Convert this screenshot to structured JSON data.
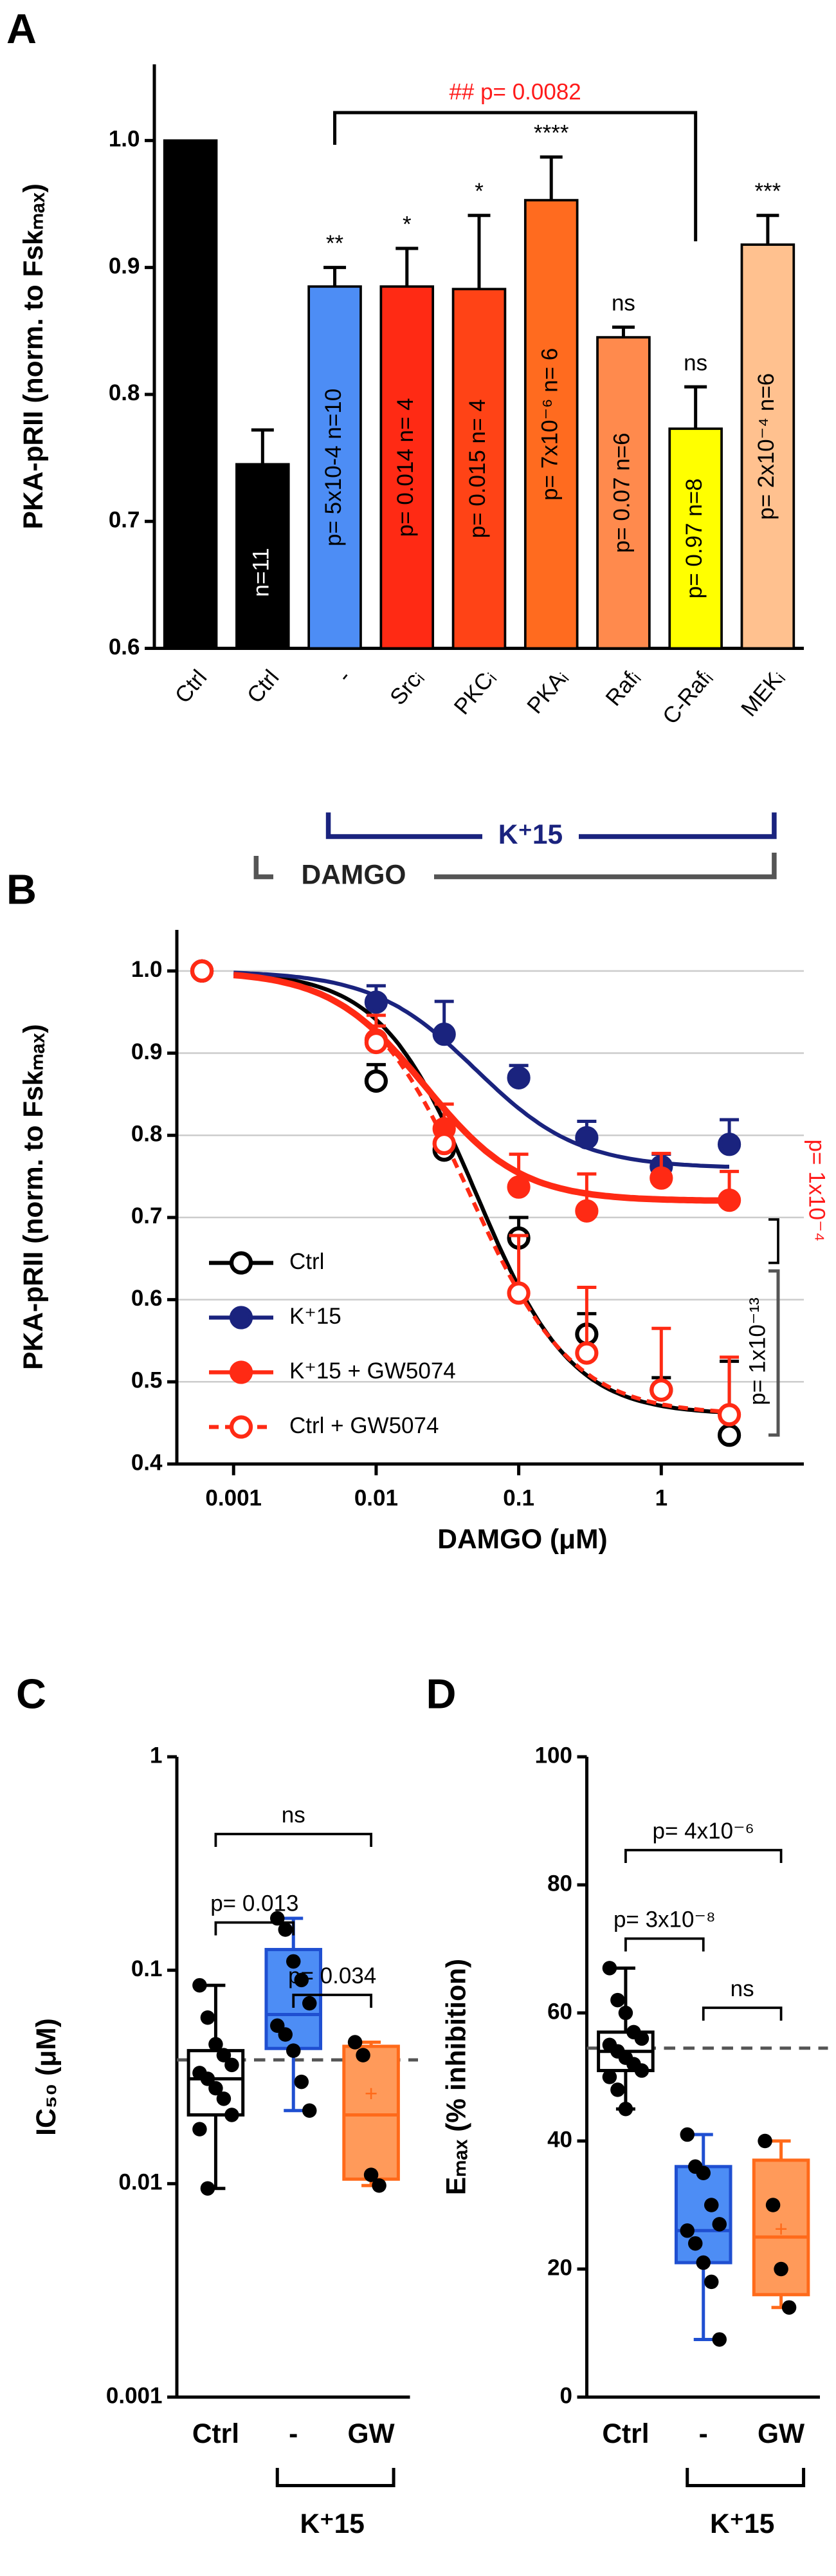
{
  "chart_data": [
    {
      "panel": "A",
      "type": "bar",
      "ylabel": "PKA-pRII (norm. to Fskₘₐₓ)",
      "categories": [
        "Ctrl",
        "Ctrl",
        "-",
        "Srcᵢ",
        "PKCᵢ",
        "PKAᵢ",
        "Rafᵢ",
        "C-Rafᵢ",
        "MEKᵢ"
      ],
      "values": [
        1.0,
        0.745,
        0.885,
        0.885,
        0.883,
        0.953,
        0.845,
        0.773,
        0.918
      ],
      "errors": [
        null,
        0.027,
        0.015,
        0.03,
        0.058,
        0.034,
        0.008,
        0.033,
        0.023
      ],
      "colors": [
        "#000000",
        "#000000",
        "#4d8df5",
        "#ff2a14",
        "#ff4316",
        "#ff6b1f",
        "#ff8a4d",
        "#ffff00",
        "#ffc18f"
      ],
      "significance": [
        null,
        null,
        "**",
        "*",
        "*",
        "****",
        "ns",
        "ns",
        "***"
      ],
      "bar_labels": [
        null,
        "n=11",
        "p= 5x10-4  n=10",
        "p= 0.014  n= 4",
        "p= 0.015  n= 4",
        "p= 7x10⁻⁶  n= 6",
        "p= 0.07  n=6",
        "p= 0.97  n=8",
        "p= 2x10⁻⁴  n=6"
      ],
      "ylim": [
        0.6,
        1.06
      ],
      "yticks": [
        0.6,
        0.7,
        0.8,
        0.9,
        {
          "value": 1,
          "label": "1.0"
        }
      ],
      "bracket_label": "## p= 0.0082",
      "groups": [
        "K⁺15",
        "DAMGO"
      ]
    },
    {
      "panel": "B",
      "type": "line",
      "xlabel": "DAMGO (μM)",
      "ylabel": "PKA-pRII (norm. to Fskₘₐₓ)",
      "x": [
        0.0006,
        0.01,
        0.03,
        0.1,
        0.3,
        1,
        3
      ],
      "xlog": true,
      "xlim": [
        0.0004,
        10
      ],
      "xticks": [
        0.001,
        0.01,
        0.1,
        1
      ],
      "ylim": [
        0.4,
        1.05
      ],
      "yticks": [
        0.4,
        0.5,
        0.6,
        0.7,
        0.8,
        0.9,
        {
          "value": 1,
          "label": "1.0"
        }
      ],
      "grid": true,
      "legend": "lower left",
      "series": [
        {
          "name": "Ctrl",
          "color": "#000000",
          "marker": "open",
          "dashed": false,
          "values": [
            1.0,
            0.866,
            0.782,
            0.675,
            0.558,
            0.49,
            0.435
          ],
          "errors": [
            null,
            0.02,
            0.02,
            0.025,
            0.025,
            0.015,
            0.09
          ],
          "fit": {
            "top": 1.0,
            "bottom": 0.46,
            "ic50": 0.05,
            "hill": 1.3
          }
        },
        {
          "name": "K⁺15",
          "color": "#1a237e",
          "marker": "filled",
          "dashed": false,
          "values": [
            1.0,
            0.962,
            0.923,
            0.87,
            0.797,
            0.762,
            0.789
          ],
          "errors": [
            null,
            0.02,
            0.04,
            0.015,
            0.02,
            0.015,
            0.03
          ],
          "fit": {
            "top": 1.0,
            "bottom": 0.76,
            "ic50": 0.05,
            "hill": 1.2
          }
        },
        {
          "name": "K⁺15 + GW5074",
          "color": "#ff2a14",
          "marker": "filled",
          "dashed": false,
          "values": [
            1.0,
            0.916,
            0.808,
            0.737,
            0.708,
            0.748,
            0.721
          ],
          "errors": [
            null,
            0.03,
            0.03,
            0.04,
            0.045,
            0.03,
            0.035
          ],
          "fit": {
            "top": 1.0,
            "bottom": 0.72,
            "ic50": 0.022,
            "hill": 1.3
          }
        },
        {
          "name": "Ctrl + GW5074",
          "color": "#ff2a14",
          "marker": "open",
          "dashed": true,
          "values": [
            1.0,
            0.913,
            0.79,
            0.608,
            0.535,
            0.49,
            0.46
          ],
          "errors": [
            null,
            0.02,
            0.02,
            0.07,
            0.08,
            0.075,
            0.07
          ],
          "fit": {
            "top": 1.0,
            "bottom": 0.46,
            "ic50": 0.045,
            "hill": 1.2
          }
        }
      ],
      "annotations": [
        "p= 1x10⁻⁴",
        "p= 1x10⁻¹³"
      ]
    },
    {
      "panel": "C",
      "type": "box",
      "ylabel": "IC₅₀ (μM)",
      "categories": [
        "Ctrl",
        "-",
        "GW"
      ],
      "group_label": "K⁺15",
      "colors": [
        "#000000",
        "#1f4fd1",
        "#ff6a1a"
      ],
      "fills": [
        "#ffffff",
        "#4d8df5",
        "#ff9a5a"
      ],
      "ylog": true,
      "ylim": [
        0.001,
        1
      ],
      "yticks": [
        0.001,
        0.01,
        0.1,
        1
      ],
      "reference_line": 0.038,
      "boxes": [
        {
          "min": 0.0095,
          "q1": 0.021,
          "median": 0.031,
          "q3": 0.042,
          "max": 0.085,
          "points": [
            0.085,
            0.06,
            0.045,
            0.04,
            0.036,
            0.033,
            0.031,
            0.028,
            0.025,
            0.021,
            0.018,
            0.0095
          ]
        },
        {
          "min": 0.022,
          "q1": 0.043,
          "median": 0.062,
          "q3": 0.125,
          "max": 0.175,
          "points": [
            0.175,
            0.155,
            0.11,
            0.09,
            0.07,
            0.055,
            0.05,
            0.042,
            0.03,
            0.022
          ]
        },
        {
          "min": 0.0098,
          "q1": 0.0105,
          "median": 0.021,
          "q3": 0.044,
          "max": 0.046,
          "mean": 0.026,
          "points": [
            0.046,
            0.04,
            0.011,
            0.0098
          ]
        }
      ],
      "comparisons": [
        "ns",
        "p= 0.013",
        "p= 0.034"
      ]
    },
    {
      "panel": "D",
      "type": "box",
      "ylabel": "Eₘₐₓ (% inhibition)",
      "categories": [
        "Ctrl",
        "-",
        "GW"
      ],
      "group_label": "K⁺15",
      "colors": [
        "#000000",
        "#1f4fd1",
        "#ff6a1a"
      ],
      "fills": [
        "#ffffff",
        "#4d8df5",
        "#ff9a5a"
      ],
      "ylog": false,
      "ylim": [
        0,
        100
      ],
      "yticks": [
        0,
        20,
        40,
        60,
        80,
        100
      ],
      "reference_line": 54.5,
      "boxes": [
        {
          "min": 45,
          "q1": 51,
          "median": 54,
          "q3": 57,
          "max": 67,
          "points": [
            67,
            62,
            60,
            57,
            56,
            55,
            54,
            53,
            52,
            51,
            50,
            48,
            45
          ]
        },
        {
          "min": 9,
          "q1": 21,
          "median": 26,
          "q3": 36,
          "max": 41,
          "points": [
            41,
            36,
            35,
            30,
            27,
            26,
            24,
            21,
            18,
            9
          ]
        },
        {
          "min": 14,
          "q1": 16,
          "median": 25,
          "q3": 37,
          "max": 40,
          "mean": 26,
          "points": [
            40,
            30,
            20,
            14
          ]
        }
      ],
      "comparisons": [
        "p= 4x10⁻⁶",
        "p= 3x10⁻⁸",
        "ns"
      ]
    }
  ]
}
